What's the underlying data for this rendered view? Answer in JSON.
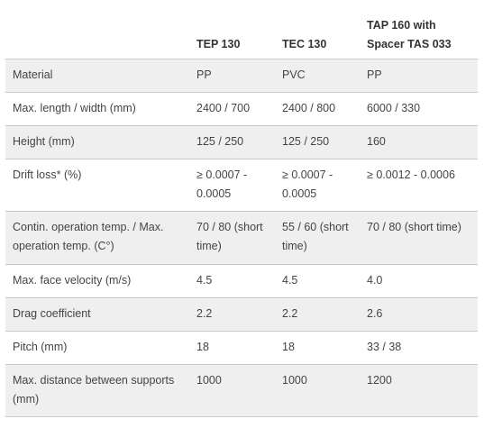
{
  "table": {
    "headers": [
      "",
      "TEP 130",
      "TEC 130",
      "TAP 160 with Spacer TAS 033"
    ],
    "rows": [
      [
        "Material",
        "PP",
        "PVC",
        "PP"
      ],
      [
        "Max. length / width (mm)",
        "2400 / 700",
        "2400 / 800",
        "6000 / 330"
      ],
      [
        "Height (mm)",
        "125 / 250",
        "125 / 250",
        "160"
      ],
      [
        "Drift loss* (%)",
        "≥ 0.0007 - 0.0005",
        "≥ 0.0007 - 0.0005",
        "≥ 0.0012 - 0.0006"
      ],
      [
        "Contin. operation temp. / Max. operation temp. (C°)",
        "70 / 80 (short time)",
        "55 / 60 (short time)",
        "70 / 80 (short time)"
      ],
      [
        "Max. face velocity (m/s)",
        "4.5",
        "4.5",
        "4.0"
      ],
      [
        "Drag coefficient",
        "2.2",
        "2.2",
        "2.6"
      ],
      [
        "Pitch (mm)",
        "18",
        "18",
        "33 / 38"
      ],
      [
        "Max. distance between supports (mm)",
        "1000",
        "1000",
        "1200"
      ]
    ]
  },
  "colors": {
    "stripe": "#efefef",
    "border": "#c8c8c8",
    "text": "#444444"
  }
}
